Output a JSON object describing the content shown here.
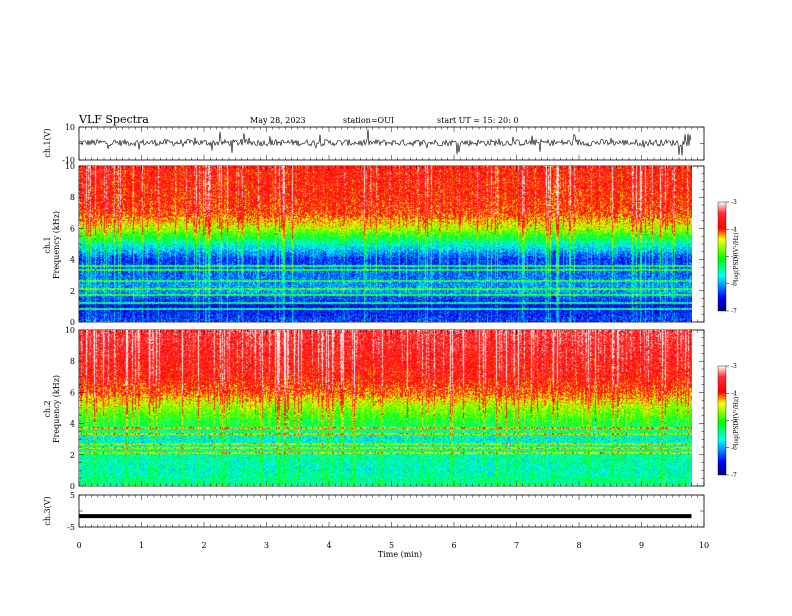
{
  "header": {
    "title": "VLF Spectra",
    "date": "May 28, 2023",
    "station": "station=OUI",
    "start": "start UT = 15: 20: 0"
  },
  "chart_data": [
    {
      "type": "line",
      "panel": "ch1-waveform",
      "ylabel": "ch.1(V)",
      "yticks": [
        "10",
        "-10"
      ],
      "ylim": [
        -10,
        10
      ],
      "xlim": [
        0,
        10
      ],
      "trace_level": 0.5,
      "trace_noise": 2
    },
    {
      "type": "heatmap",
      "panel": "ch1-spectrogram",
      "ylabel_top": "ch.1",
      "ylabel": "Frequency (kHz)",
      "ylim": [
        0,
        10
      ],
      "yticks": [
        "0",
        "2",
        "4",
        "6",
        "8",
        "10"
      ],
      "xlim": [
        0,
        9.8
      ],
      "colorbar": {
        "label": "log(PSD)(V²/Hz)",
        "ticks": [
          "-3",
          "-4",
          "-5",
          "-6",
          "-7"
        ],
        "range": [
          -7,
          -3
        ]
      },
      "profile": [
        {
          "f": 0,
          "level": -6.3
        },
        {
          "f": 1,
          "level": -6.6
        },
        {
          "f": 2,
          "level": -6.0
        },
        {
          "f": 3,
          "level": -6.2
        },
        {
          "f": 4,
          "level": -6.4
        },
        {
          "f": 5,
          "level": -5.6
        },
        {
          "f": 6,
          "level": -4.6
        },
        {
          "f": 7,
          "level": -4.0
        },
        {
          "f": 8,
          "level": -3.9
        },
        {
          "f": 10,
          "level": -3.8
        }
      ],
      "lines_khz": [
        0.8,
        1.2,
        1.7,
        2.1,
        2.6,
        3.3,
        3.6
      ]
    },
    {
      "type": "heatmap",
      "panel": "ch2-spectrogram",
      "ylabel_top": "ch.2",
      "ylabel": "Frequency (kHz)",
      "ylim": [
        0,
        10
      ],
      "yticks": [
        "0",
        "2",
        "4",
        "6",
        "8",
        "10"
      ],
      "xlim": [
        0,
        9.8
      ],
      "colorbar": {
        "label": "log(PSD)(V²/Hz)",
        "ticks": [
          "-3",
          "-4",
          "-5",
          "-6",
          "-7"
        ],
        "range": [
          -7,
          -3
        ]
      },
      "profile": [
        {
          "f": 0,
          "level": -5.4
        },
        {
          "f": 1,
          "level": -5.6
        },
        {
          "f": 2,
          "level": -5.5
        },
        {
          "f": 3,
          "level": -5.7
        },
        {
          "f": 4,
          "level": -5.2
        },
        {
          "f": 5,
          "level": -4.7
        },
        {
          "f": 6,
          "level": -4.1
        },
        {
          "f": 7,
          "level": -3.8
        },
        {
          "f": 10,
          "level": -3.5
        }
      ],
      "lines_khz": [
        2.1,
        2.4,
        2.7,
        3.3,
        3.7
      ]
    },
    {
      "type": "line",
      "panel": "ch3-waveform",
      "ylabel": "ch.3(V)",
      "yticks": [
        "5",
        "-5"
      ],
      "ylim": [
        -5,
        5
      ],
      "xlim": [
        0,
        10
      ],
      "trace_level": -1.6,
      "xlabel": "Time (min)",
      "xticks": [
        "0",
        "1",
        "2",
        "3",
        "4",
        "5",
        "6",
        "7",
        "8",
        "9",
        "10"
      ]
    }
  ]
}
